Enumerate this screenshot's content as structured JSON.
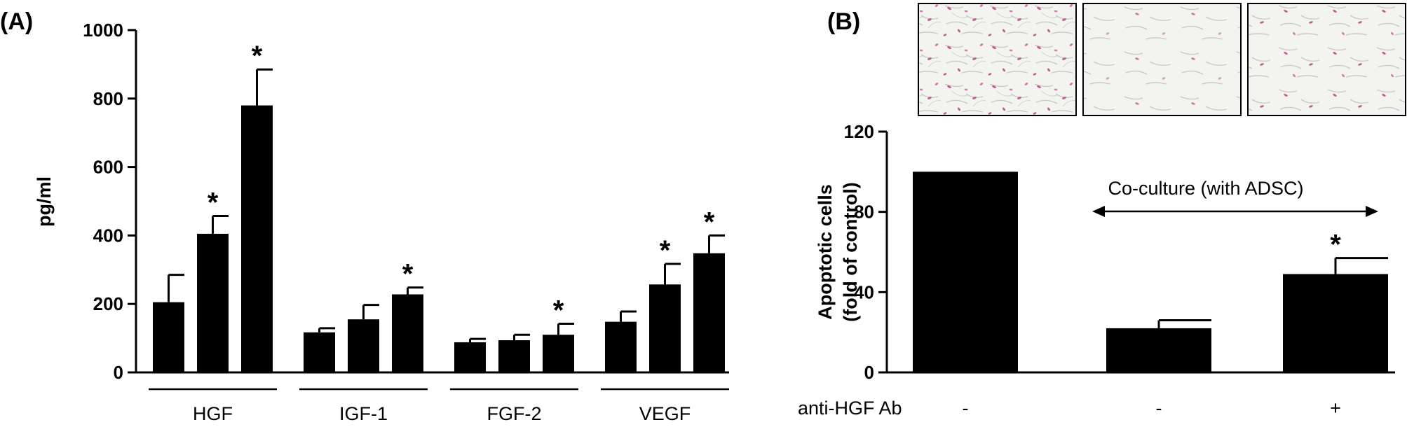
{
  "panels": {
    "a": {
      "label": "(A)"
    },
    "b": {
      "label": "(B)"
    }
  },
  "micrograph_images": [
    {
      "image": "micrograph-control"
    },
    {
      "image": "micrograph-co-culture"
    },
    {
      "image": "micrograph-co-culture-anti-hgf"
    }
  ],
  "colors": {
    "bar": "#000000",
    "micrograph_bg": "#f3f3f0",
    "stain": "#c85a9a"
  },
  "chart_data": [
    {
      "type": "bar",
      "panel": "A",
      "ylabel": "pg/ml",
      "ylim": [
        0,
        1000
      ],
      "yticks": [
        0,
        200,
        400,
        600,
        800,
        1000
      ],
      "ytick_labels": [
        "0",
        "200",
        "400",
        "600",
        "800",
        "1000"
      ],
      "grid": false,
      "categories": [
        "HGF",
        "IGF-1",
        "FGF-2",
        "VEGF"
      ],
      "bars_per_category": 3,
      "values": [
        [
          205,
          405,
          780
        ],
        [
          117,
          155,
          228
        ],
        [
          88,
          94,
          110
        ],
        [
          148,
          257,
          348
        ]
      ],
      "errors": [
        [
          80,
          52,
          105
        ],
        [
          12,
          42,
          20
        ],
        [
          10,
          16,
          32
        ],
        [
          30,
          60,
          52
        ]
      ],
      "significance": [
        [
          false,
          true,
          true
        ],
        [
          false,
          false,
          true
        ],
        [
          false,
          false,
          true
        ],
        [
          false,
          true,
          true
        ]
      ],
      "significance_mark": "*"
    },
    {
      "type": "bar",
      "panel": "B",
      "ylabel": "Apoptotic cells",
      "ylabel2": "(fold of control)",
      "ylim": [
        0,
        120
      ],
      "yticks": [
        0,
        40,
        80,
        120
      ],
      "ytick_labels": [
        "0",
        "40",
        "80",
        "120"
      ],
      "grid": false,
      "values": [
        100,
        22,
        49
      ],
      "errors": [
        0,
        4,
        8
      ],
      "significance": [
        false,
        false,
        true
      ],
      "significance_mark": "*",
      "annotation": "Co-culture (with ADSC)",
      "row_label": "anti-HGF Ab",
      "treatment_signs": [
        "-",
        "-",
        "+"
      ]
    }
  ]
}
